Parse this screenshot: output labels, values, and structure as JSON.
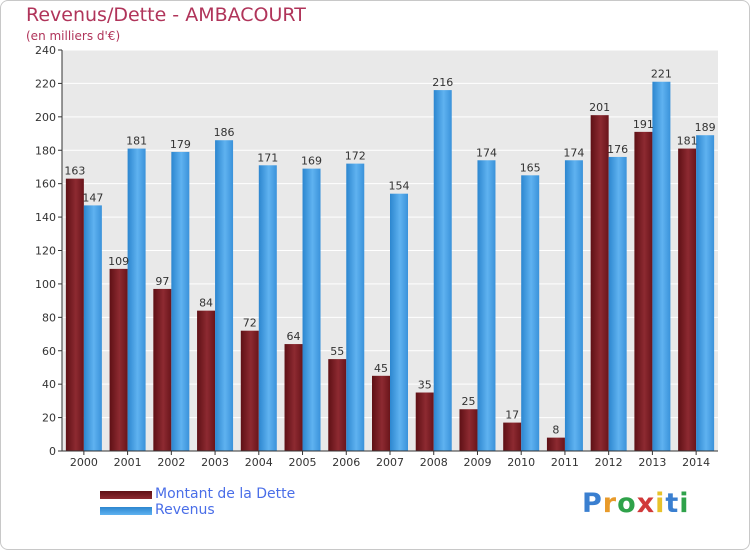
{
  "header": {
    "title": "Revenus/Dette - AMBACOURT",
    "subtitle": "(en milliers d'€)"
  },
  "legend": {
    "dette_label": "Montant de la Dette",
    "revenus_label": "Revenus"
  },
  "logo": {
    "text": "Proxiti"
  },
  "colors": {
    "dette": "#7b1f26",
    "revenus": "#3a9ae4",
    "title": "#b0345a",
    "legend_text": "#4a6ee8",
    "grid": "#ffffff",
    "plot_bg": "#e9e9e9"
  },
  "chart_data": {
    "type": "bar",
    "title": "Revenus/Dette - AMBACOURT",
    "subtitle": "(en milliers d'€)",
    "categories": [
      "2000",
      "2001",
      "2002",
      "2003",
      "2004",
      "2005",
      "2006",
      "2007",
      "2008",
      "2009",
      "2010",
      "2011",
      "2012",
      "2013",
      "2014"
    ],
    "series": [
      {
        "name": "Montant de la Dette",
        "values": [
          163,
          109,
          97,
          84,
          72,
          64,
          55,
          45,
          35,
          25,
          17,
          8,
          201,
          191,
          181
        ]
      },
      {
        "name": "Revenus",
        "values": [
          147,
          181,
          179,
          186,
          171,
          169,
          172,
          154,
          216,
          174,
          165,
          174,
          176,
          221,
          189
        ]
      }
    ],
    "ylim": [
      0,
      240
    ],
    "yticks": [
      0,
      20,
      40,
      60,
      80,
      100,
      120,
      140,
      160,
      180,
      200,
      220,
      240
    ],
    "grid": true,
    "legend_position": "bottom-left"
  }
}
